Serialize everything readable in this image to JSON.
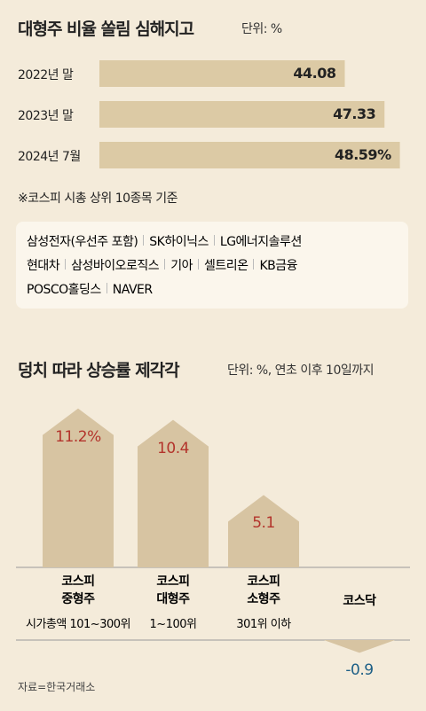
{
  "chart_data": [
    {
      "type": "hbar",
      "title": "대형주 비율 쏠림 심해지고",
      "unit": "단위: %",
      "categories": [
        "2022년 말",
        "2023년 말",
        "2024년 7월"
      ],
      "values": [
        44.08,
        47.33,
        48.59
      ],
      "value_labels": [
        "44.08",
        "47.33",
        "48.59%"
      ],
      "color": "#dccaa5",
      "xlim": [
        24,
        50
      ],
      "note": "※코스피 시총 상위 10종목 기준",
      "constituents": [
        [
          "삼성전자(우선주 포함)",
          "SK하이닉스",
          "LG에너지솔루션"
        ],
        [
          "현대차",
          "삼성바이오로직스",
          "기아",
          "셀트리온",
          "KB금융"
        ],
        [
          "POSCO홀딩스",
          "NAVER"
        ]
      ]
    },
    {
      "type": "arrow",
      "title": "덩치 따라 상승률 제각각",
      "unit": "단위: %, 연초 이후 10일까지",
      "categories": [
        "코스피\n중형주",
        "코스피\n대형주",
        "코스피\n소형주",
        "코스닥"
      ],
      "sublabels": [
        "시가총액 101~300위",
        "1~100위",
        "301위 이하",
        null
      ],
      "values": [
        11.2,
        10.4,
        5.1,
        -0.9
      ],
      "value_labels": [
        "11.2%",
        "10.4",
        "5.1",
        "-0.9"
      ],
      "color": "#d7c4a2",
      "positive_color": "#b3342c",
      "negative_color": "#1d5f86",
      "ylim": [
        0,
        12
      ]
    }
  ],
  "source": "자료=한국거래소"
}
